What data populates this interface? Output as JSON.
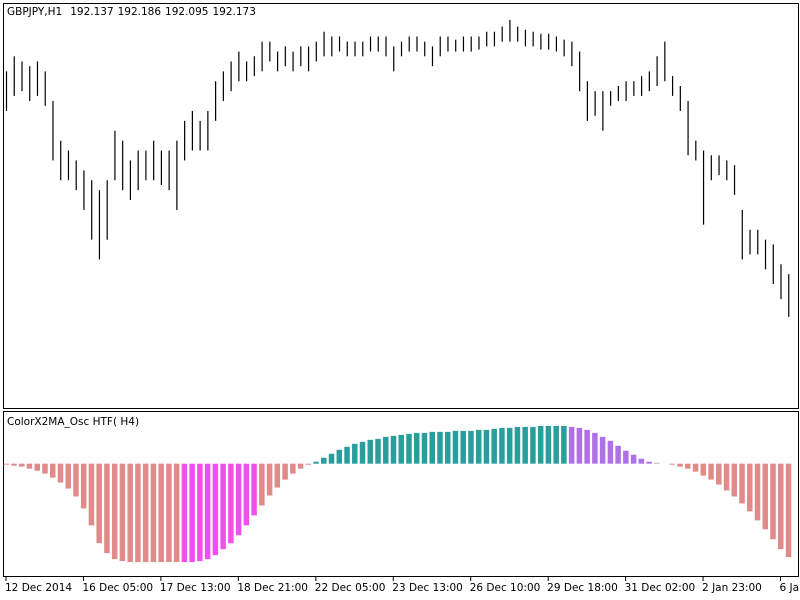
{
  "chart_data": [
    {
      "type": "ohlc",
      "title": "GBPJPY,H1",
      "last": {
        "open": 192.137,
        "high": 192.186,
        "low": 192.095,
        "close": 192.173
      },
      "color": "#000000",
      "xlim": [
        0,
        102
      ],
      "ylim": [
        189.9,
        200
      ],
      "high": [
        198.35,
        198.73,
        198.6,
        198.48,
        198.6,
        198.35,
        197.6,
        196.6,
        196.35,
        196.1,
        195.85,
        195.6,
        195.35,
        195.6,
        196.85,
        196.6,
        196.1,
        196.35,
        196.35,
        196.6,
        196.35,
        196.35,
        196.6,
        197.1,
        197.35,
        197.1,
        197.35,
        198.1,
        198.35,
        198.6,
        198.85,
        198.6,
        198.73,
        199.1,
        199.1,
        198.85,
        198.98,
        198.85,
        198.98,
        198.98,
        199.1,
        199.35,
        199.23,
        199.23,
        199.1,
        199.1,
        199.1,
        199.23,
        199.23,
        199.23,
        198.98,
        199.1,
        199.23,
        199.23,
        199.1,
        198.98,
        199.23,
        199.23,
        199.15,
        199.23,
        199.23,
        199.23,
        199.35,
        199.35,
        199.48,
        199.65,
        199.48,
        199.4,
        199.35,
        199.3,
        199.3,
        199.23,
        199.15,
        199.1,
        198.85,
        198.1,
        197.85,
        197.85,
        197.85,
        197.98,
        198.1,
        198.1,
        198.23,
        198.35,
        198.73,
        199.1,
        198.23,
        197.98,
        197.6,
        196.6,
        196.35,
        196.23,
        196.23,
        196.1,
        195.98,
        194.85,
        194.35,
        194.35,
        194.1,
        193.98,
        193.48,
        193.23
      ],
      "low": [
        197.35,
        197.73,
        197.85,
        197.6,
        197.73,
        197.48,
        196.1,
        195.6,
        195.6,
        195.35,
        194.85,
        194.1,
        193.6,
        194.1,
        195.6,
        195.35,
        195.1,
        195.35,
        195.6,
        195.6,
        195.48,
        195.35,
        194.85,
        196.1,
        196.35,
        196.35,
        196.35,
        197.1,
        197.6,
        197.85,
        198.1,
        198.1,
        198.23,
        198.35,
        198.6,
        198.35,
        198.48,
        198.35,
        198.48,
        198.35,
        198.6,
        198.73,
        198.73,
        198.85,
        198.73,
        198.73,
        198.73,
        198.85,
        198.85,
        198.73,
        198.35,
        198.73,
        198.85,
        198.85,
        198.73,
        198.48,
        198.73,
        198.85,
        198.85,
        198.85,
        198.85,
        198.9,
        198.98,
        198.98,
        199.1,
        199.1,
        199.1,
        198.98,
        198.98,
        198.9,
        198.9,
        198.85,
        198.73,
        198.48,
        197.85,
        197.1,
        197.23,
        196.85,
        197.48,
        197.6,
        197.6,
        197.73,
        197.73,
        197.85,
        197.98,
        198.1,
        197.73,
        197.35,
        196.23,
        196.1,
        194.48,
        195.6,
        195.73,
        195.6,
        195.23,
        193.6,
        193.73,
        193.73,
        193.35,
        192.98,
        192.6,
        192.15
      ]
    },
    {
      "type": "bar",
      "title": "ColorX2MA_Osc HTF( H4)",
      "xlim": [
        0,
        102
      ],
      "ylim": [
        -112,
        50
      ],
      "xticks": [
        {
          "value": 0,
          "label": "12 Dec 2014"
        },
        {
          "value": 10,
          "label": "16 Dec 05:00"
        },
        {
          "value": 20,
          "label": "17 Dec 13:00"
        },
        {
          "value": 30,
          "label": "18 Dec 21:00"
        },
        {
          "value": 40,
          "label": "22 Dec 05:00"
        },
        {
          "value": 50,
          "label": "23 Dec 13:00"
        },
        {
          "value": 60,
          "label": "26 Dec 10:00"
        },
        {
          "value": 70,
          "label": "29 Dec 18:00"
        },
        {
          "value": 80,
          "label": "31 Dec 02:00"
        },
        {
          "value": 90,
          "label": "2 Jan 23:00"
        },
        {
          "value": 100,
          "label": "6 Ja"
        }
      ],
      "values": [
        -1,
        -2,
        -3,
        -5,
        -7,
        -10,
        -14,
        -19,
        -25,
        -33,
        -45,
        -62,
        -80,
        -90,
        -96,
        -98,
        -99,
        -99,
        -99,
        -99,
        -99,
        -99,
        -99,
        -99,
        -99,
        -98,
        -96,
        -92,
        -86,
        -80,
        -72,
        -62,
        -52,
        -42,
        -32,
        -24,
        -16,
        -10,
        -5,
        -1,
        2,
        6,
        10,
        14,
        17,
        20,
        22,
        24,
        25,
        27,
        28,
        29,
        30,
        31,
        31,
        32,
        32,
        32,
        33,
        33,
        33,
        34,
        34,
        35,
        36,
        36,
        37,
        37,
        37,
        38,
        38,
        38,
        38,
        37,
        36,
        34,
        31,
        27,
        23,
        18,
        13,
        9,
        5,
        2,
        1,
        0,
        -1,
        -3,
        -5,
        -8,
        -12,
        -16,
        -21,
        -27,
        -33,
        -40,
        -48,
        -57,
        -66,
        -76,
        -86,
        -94
      ],
      "colors": [
        "#e08a8a",
        "#e08a8a",
        "#e08a8a",
        "#e08a8a",
        "#e08a8a",
        "#e08a8a",
        "#e08a8a",
        "#e08a8a",
        "#e08a8a",
        "#e08a8a",
        "#e08a8a",
        "#e08a8a",
        "#e08a8a",
        "#e08a8a",
        "#e08a8a",
        "#e08a8a",
        "#e08a8a",
        "#e08a8a",
        "#e08a8a",
        "#e08a8a",
        "#e08a8a",
        "#e08a8a",
        "#e08a8a",
        "#f050f0",
        "#f050f0",
        "#f050f0",
        "#f050f0",
        "#f050f0",
        "#f050f0",
        "#f050f0",
        "#f050f0",
        "#f050f0",
        "#f050f0",
        "#e08a8a",
        "#e08a8a",
        "#e08a8a",
        "#e08a8a",
        "#e08a8a",
        "#e08a8a",
        "#e08a8a",
        "#2a9d9d",
        "#2a9d9d",
        "#2a9d9d",
        "#2a9d9d",
        "#2a9d9d",
        "#2a9d9d",
        "#2a9d9d",
        "#2a9d9d",
        "#2a9d9d",
        "#2a9d9d",
        "#2a9d9d",
        "#2a9d9d",
        "#2a9d9d",
        "#2a9d9d",
        "#2a9d9d",
        "#2a9d9d",
        "#2a9d9d",
        "#2a9d9d",
        "#2a9d9d",
        "#2a9d9d",
        "#2a9d9d",
        "#2a9d9d",
        "#2a9d9d",
        "#2a9d9d",
        "#2a9d9d",
        "#2a9d9d",
        "#2a9d9d",
        "#2a9d9d",
        "#2a9d9d",
        "#2a9d9d",
        "#2a9d9d",
        "#2a9d9d",
        "#2a9d9d",
        "#b070e8",
        "#b070e8",
        "#b070e8",
        "#b070e8",
        "#b070e8",
        "#b070e8",
        "#b070e8",
        "#b070e8",
        "#b070e8",
        "#b070e8",
        "#b070e8",
        "#bbbbbb",
        "#bbbbbb",
        "#e08a8a",
        "#e08a8a",
        "#e08a8a",
        "#e08a8a",
        "#e08a8a",
        "#e08a8a",
        "#e08a8a",
        "#e08a8a",
        "#e08a8a",
        "#e08a8a",
        "#e08a8a",
        "#e08a8a",
        "#e08a8a",
        "#e08a8a",
        "#e08a8a",
        "#e08a8a"
      ]
    }
  ]
}
